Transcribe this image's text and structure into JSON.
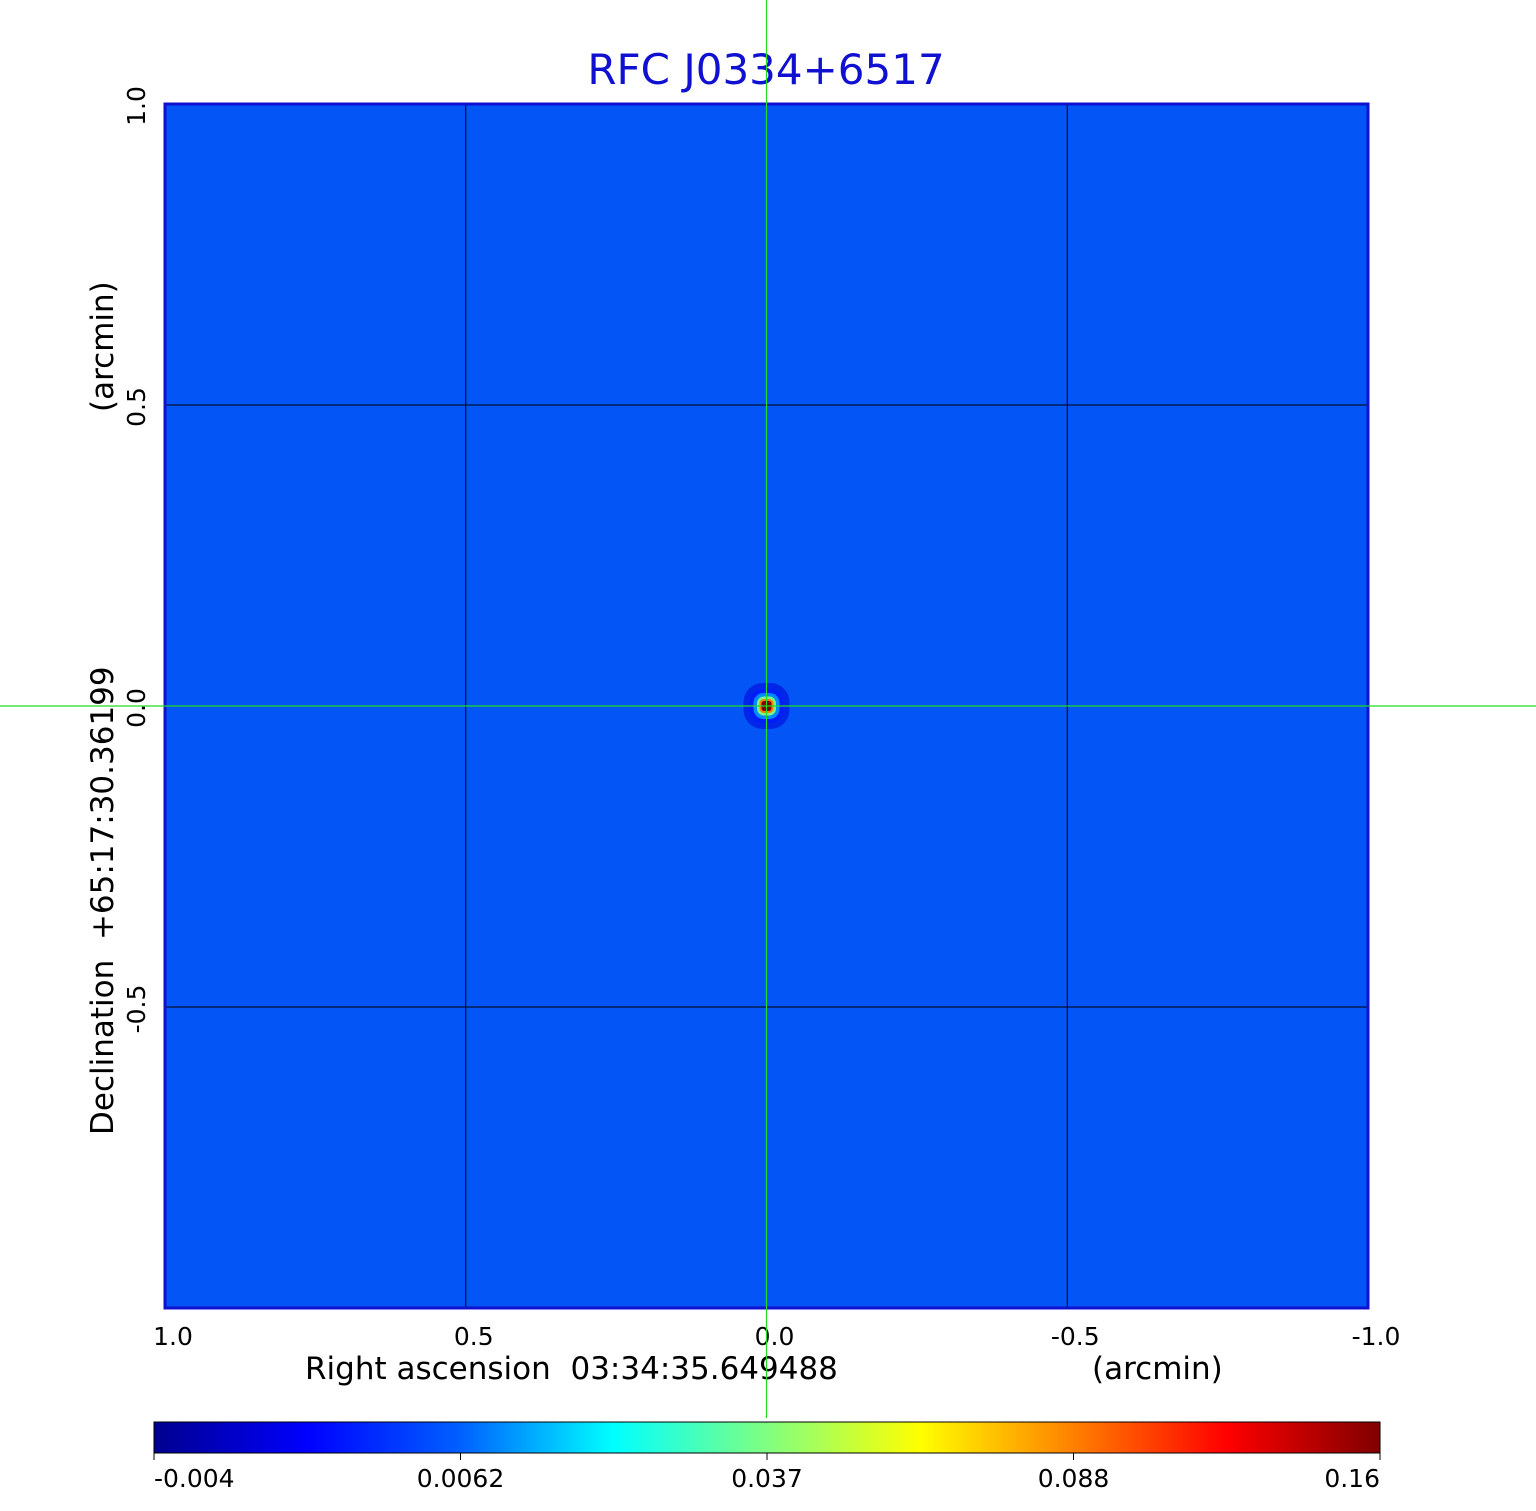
{
  "chart_data": {
    "type": "heatmap",
    "title": "RFC J0334+6517",
    "xlabel": "Right ascension  03:34:35.649488",
    "xunit": "(arcmin)",
    "ylabel": "Declination  +65:17:30.36199",
    "yunit": "(arcmin)",
    "xlim": [
      1.0,
      -1.0
    ],
    "ylim": [
      -1.0,
      1.0
    ],
    "x_ticks": [
      "1.0",
      "0.5",
      "0.0",
      "-0.5",
      "-1.0"
    ],
    "x_tick_values": [
      1.0,
      0.5,
      0.0,
      -0.5,
      -1.0
    ],
    "y_ticks": [
      "-0.5",
      "0.0",
      "0.5",
      "1.0"
    ],
    "y_tick_values": [
      -0.5,
      0.0,
      0.5,
      1.0
    ],
    "grid": true,
    "crosshair": [
      0.0,
      0.0
    ],
    "colorbar": {
      "ticks": [
        "-0.004",
        "0.0062",
        "0.037",
        "0.088",
        "0.16"
      ],
      "min": -0.004,
      "max": 0.16,
      "colormap": [
        "#00008f",
        "#0000ff",
        "#0060ff",
        "#00ffff",
        "#80ff80",
        "#ffff00",
        "#ff8000",
        "#ff0000",
        "#800000"
      ]
    },
    "background_value": 0.0,
    "peak": {
      "x": 0.0,
      "y": 0.0,
      "value": 0.16
    },
    "colors": {
      "background": "#0455f5",
      "title": "#1010d0",
      "grid": "#000000",
      "crosshair": "#22dd22",
      "frame": "#1010d0"
    }
  }
}
